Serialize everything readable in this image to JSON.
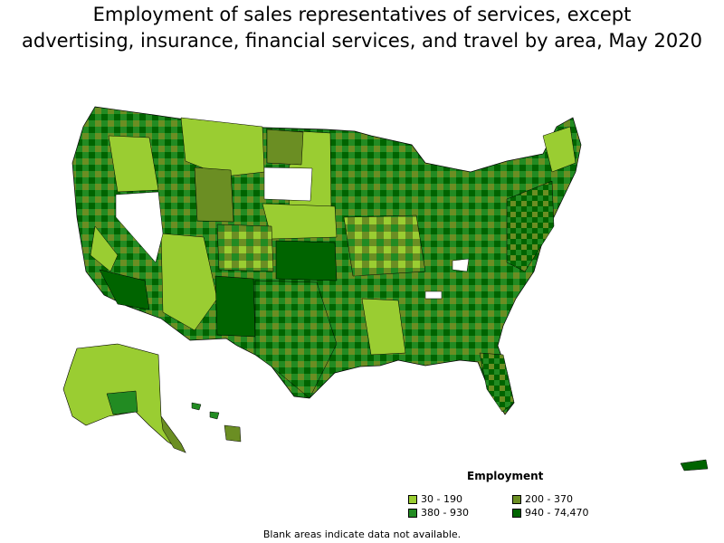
{
  "title_line1": "Employment of sales representatives of services, except",
  "title_line2": "advertising, insurance, financial services, and travel by area, May 2020",
  "legend": {
    "heading": "Employment",
    "items": [
      {
        "label": "30 - 190",
        "color": "#9acd32"
      },
      {
        "label": "200 - 370",
        "color": "#6b8e23"
      },
      {
        "label": "380 - 930",
        "color": "#228b22"
      },
      {
        "label": "940 - 74,470",
        "color": "#006400"
      }
    ]
  },
  "footnote": "Blank areas indicate data not available."
}
